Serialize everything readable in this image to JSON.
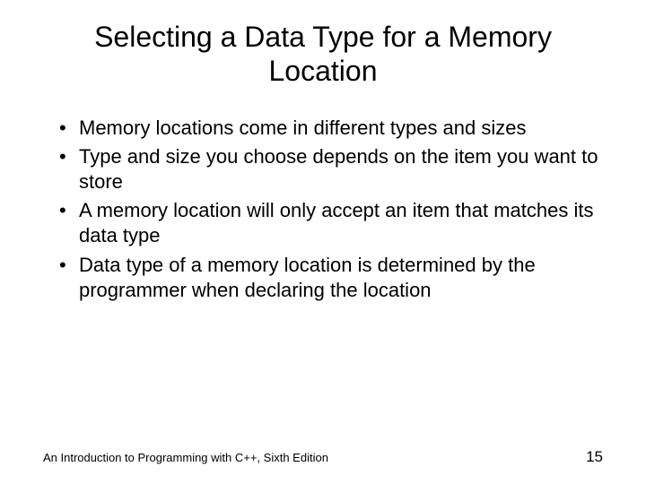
{
  "title": "Selecting a Data Type for a Memory Location",
  "bullets": [
    "Memory locations come in different types and sizes",
    "Type and size you choose depends on the item you want to store",
    "A memory location will only accept an item that matches its data type",
    "Data type of a memory location is determined by the programmer when declaring the location"
  ],
  "footer_text": "An Introduction to Programming with C++, Sixth Edition",
  "page_number": "15",
  "colors": {
    "bg": "#ffffff",
    "text": "#000000"
  },
  "typography": {
    "title_fontsize": 32,
    "bullet_fontsize": 22,
    "footer_fontsize": 13,
    "page_fontsize": 17,
    "font_family": "Arial"
  }
}
